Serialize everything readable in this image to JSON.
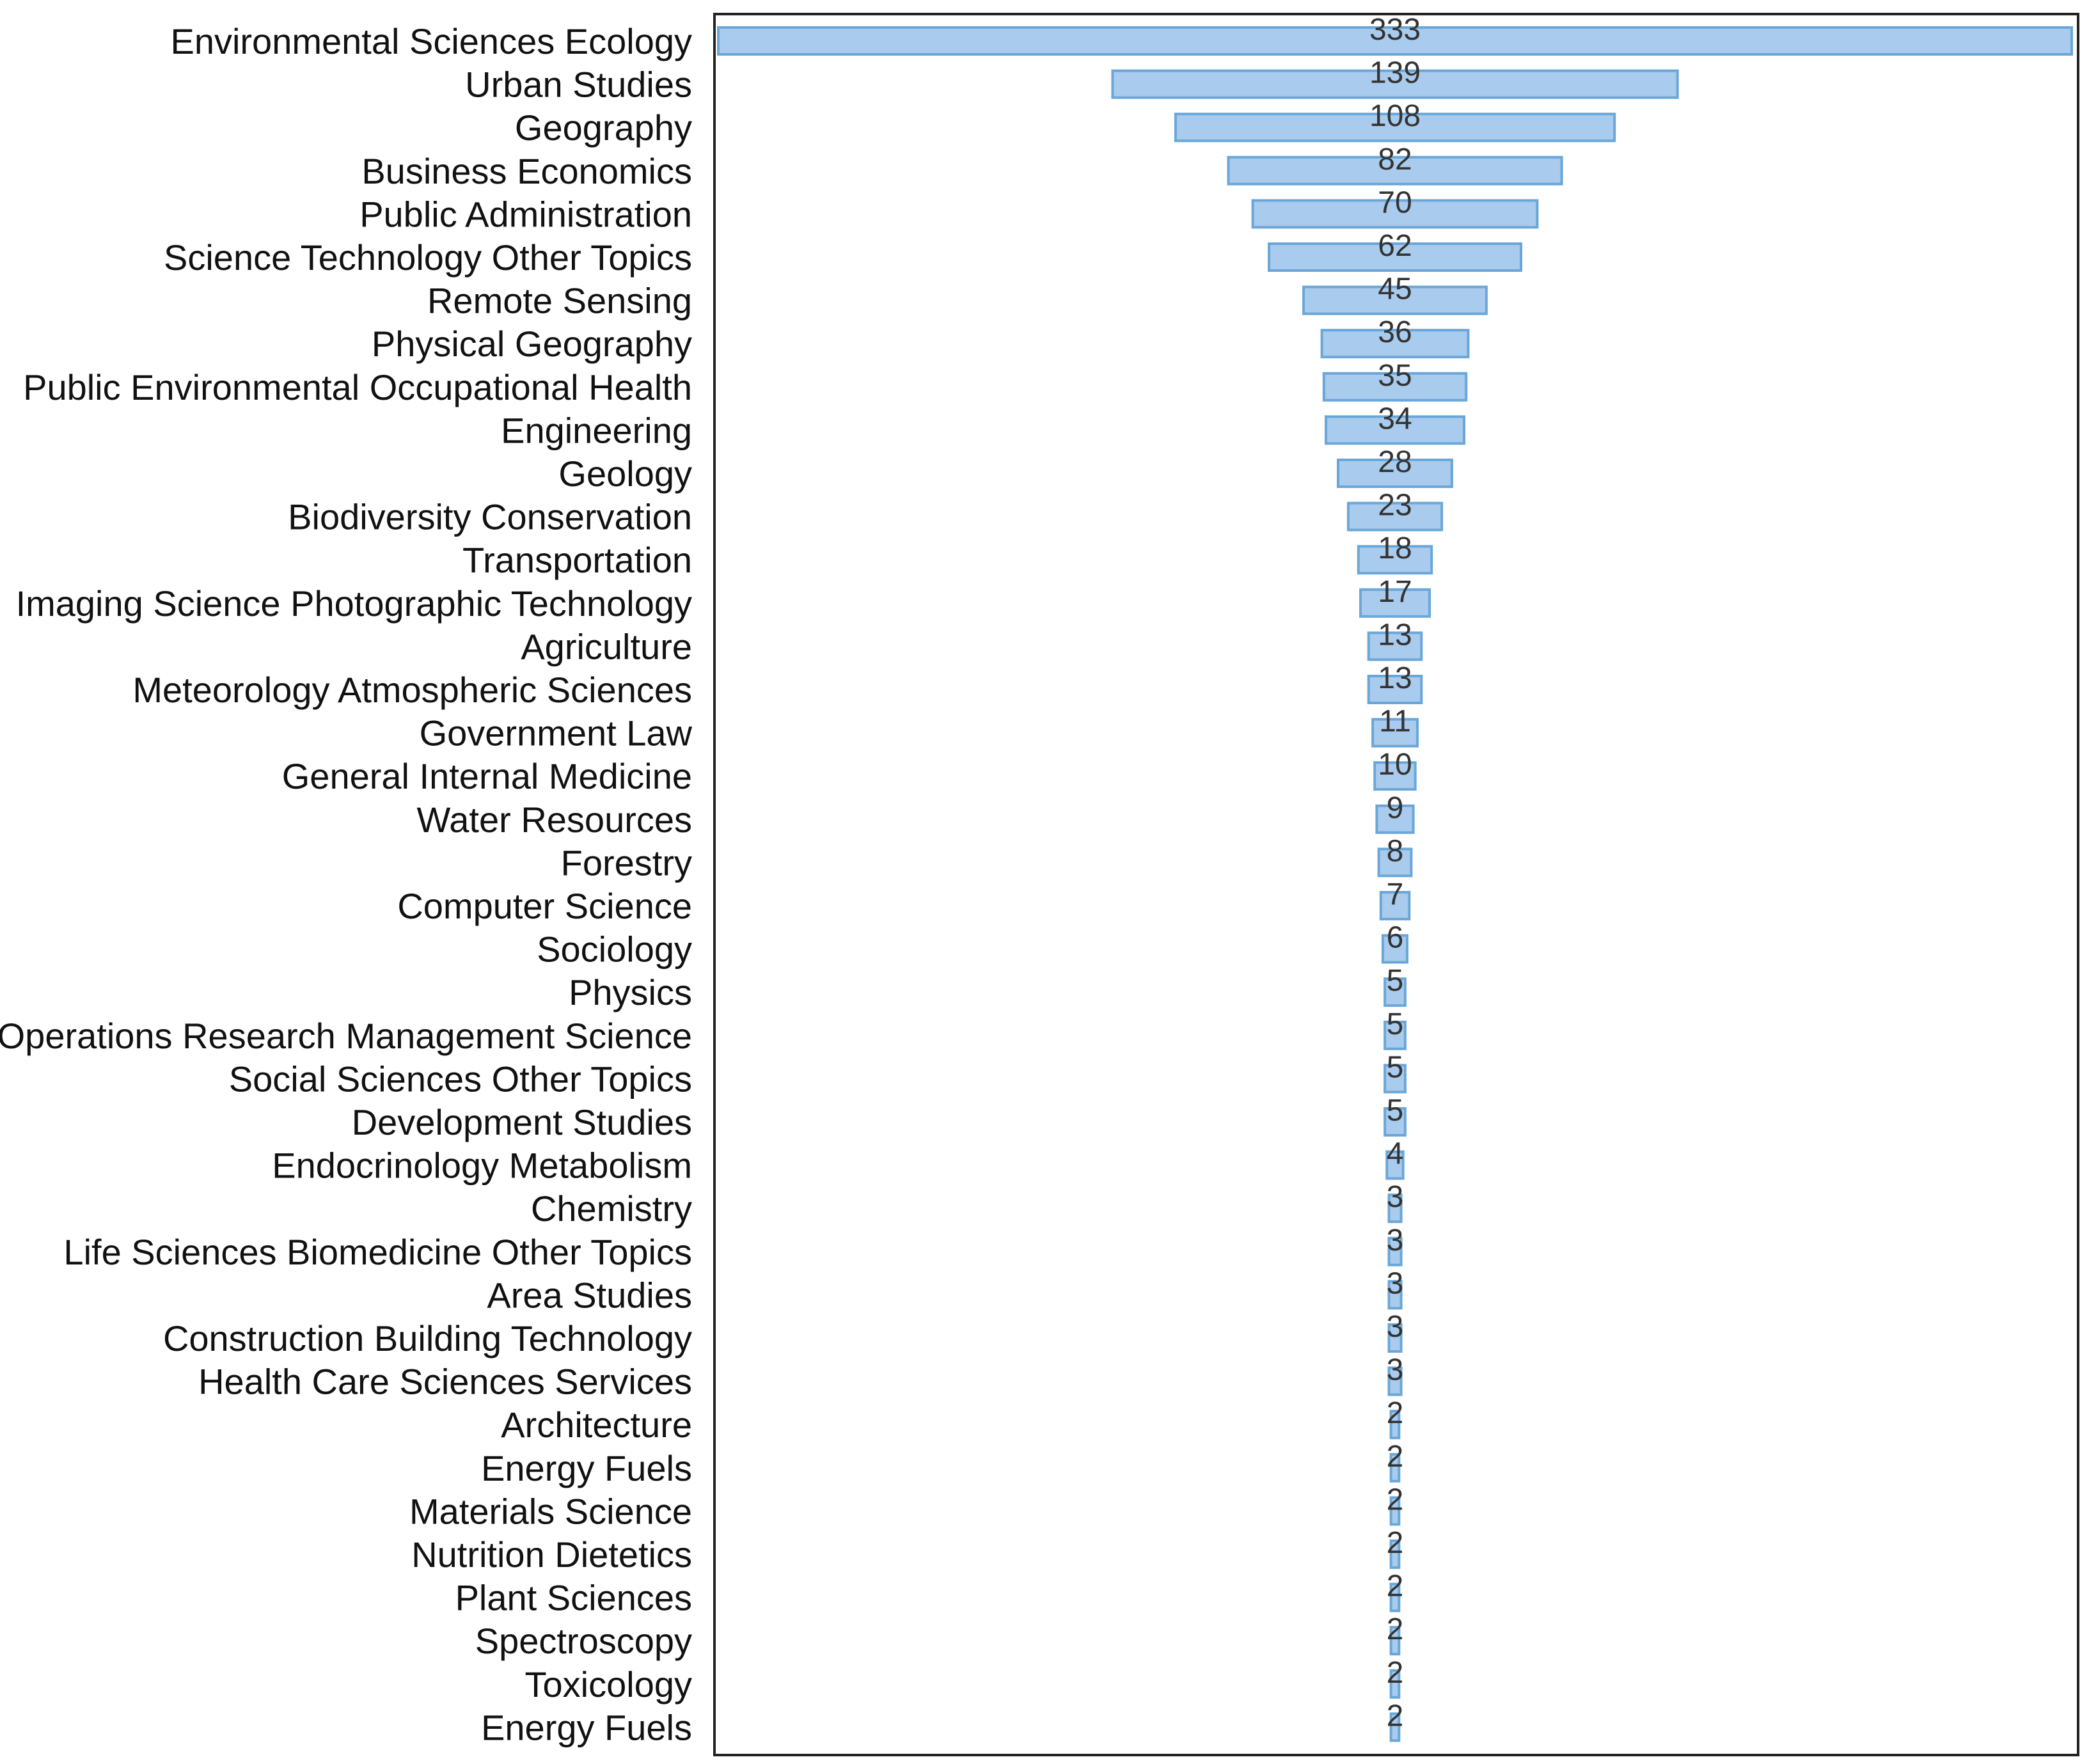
{
  "colors": {
    "bar_fill": "#a9cbed",
    "bar_stroke": "#6aa7d8",
    "frame": "#222222"
  },
  "chart_data": {
    "type": "bar",
    "orientation": "horizontal-funnel",
    "title": "",
    "xlabel": "",
    "ylabel": "",
    "xlim": [
      0,
      333
    ],
    "grid": false,
    "bar_alignment": "center",
    "categories": [
      "Environmental Sciences Ecology",
      "Urban Studies",
      "Geography",
      "Business Economics",
      "Public Administration",
      "Science Technology Other Topics",
      "Remote Sensing",
      "Physical Geography",
      "Public Environmental Occupational Health",
      "Engineering",
      "Geology",
      "Biodiversity Conservation",
      "Transportation",
      "Imaging Science Photographic Technology",
      "Agriculture",
      "Meteorology Atmospheric Sciences",
      "Government Law",
      "General Internal Medicine",
      "Water Resources",
      "Forestry",
      "Computer Science",
      "Sociology",
      "Physics",
      "Operations Research Management Science",
      "Social Sciences Other Topics",
      "Development Studies",
      "Endocrinology Metabolism",
      "Chemistry",
      "Life Sciences Biomedicine Other Topics",
      "Area Studies",
      "Construction Building Technology",
      "Health Care Sciences Services",
      "Architecture",
      "Energy Fuels",
      "Materials Science",
      "Nutrition Dietetics",
      "Plant Sciences",
      "Spectroscopy",
      "Toxicology",
      "Energy Fuels"
    ],
    "values": [
      333,
      139,
      108,
      82,
      70,
      62,
      45,
      36,
      35,
      34,
      28,
      23,
      18,
      17,
      13,
      13,
      11,
      10,
      9,
      8,
      7,
      6,
      5,
      5,
      5,
      5,
      4,
      3,
      3,
      3,
      3,
      3,
      2,
      2,
      2,
      2,
      2,
      2,
      2,
      2
    ]
  }
}
